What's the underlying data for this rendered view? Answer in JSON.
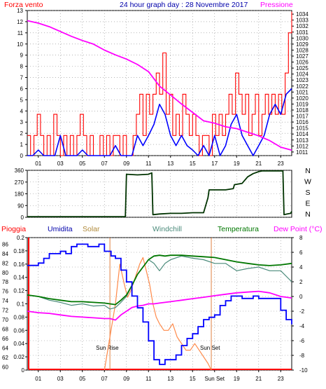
{
  "colors": {
    "red": "#ff0000",
    "dark_red": "#cc0000",
    "blue": "#0000ff",
    "navy": "#0000aa",
    "magenta": "#ff00ff",
    "dark_green": "#003300",
    "green": "#007700",
    "teal": "#4a8a7a",
    "orange": "#ff8a4a",
    "sun_line": "#e08040",
    "grid": "#888888"
  },
  "chart_data": [
    {
      "type": "line",
      "title": "24 hour graph day : 28 Novembre 2017",
      "left_axis_label": "Forza vento",
      "right_axis_label": "Pressione",
      "x_ticks": [
        "01",
        "03",
        "05",
        "07",
        "09",
        "11",
        "13",
        "15",
        "17",
        "19",
        "21",
        "23"
      ],
      "x_range": [
        0,
        24
      ],
      "left_ylim": [
        0,
        13
      ],
      "left_ticks": [
        "0",
        "1",
        "2",
        "3",
        "4",
        "5",
        "6",
        "7",
        "8",
        "9",
        "10",
        "11",
        "12",
        "13"
      ],
      "right_ylim": [
        1010.4,
        1034.6
      ],
      "right_ticks": [
        "1011",
        "1012",
        "1013",
        "1014",
        "1015",
        "1016",
        "1017",
        "1018",
        "1019",
        "1020",
        "1021",
        "1022",
        "1023",
        "1024",
        "1025",
        "1026",
        "1027",
        "1028",
        "1029",
        "1030",
        "1031",
        "1032",
        "1033",
        "1034"
      ],
      "series": [
        {
          "role": "pressure",
          "axis": "right",
          "x": [
            0,
            1,
            2,
            3,
            4,
            5,
            6,
            7,
            8,
            9,
            10,
            11,
            12,
            13,
            14,
            15,
            16,
            17,
            18,
            19,
            20,
            21,
            22,
            23,
            24
          ],
          "y": [
            1032.9,
            1032.5,
            1031.9,
            1031.1,
            1030.3,
            1029.6,
            1029.0,
            1028.0,
            1027.2,
            1026.5,
            1025.6,
            1024.4,
            1022.0,
            1020.5,
            1019.0,
            1017.6,
            1016.2,
            1015.8,
            1015.2,
            1014.9,
            1014.3,
            1013.7,
            1012.9,
            1011.8,
            1011.3
          ]
        },
        {
          "role": "gust",
          "axis": "left",
          "x": [
            0,
            0.3,
            0.6,
            0.9,
            1.2,
            1.5,
            1.8,
            2.1,
            2.4,
            2.7,
            3.0,
            3.3,
            3.6,
            3.9,
            4.2,
            4.5,
            4.8,
            5.1,
            5.4,
            5.7,
            6.0,
            6.3,
            6.6,
            6.9,
            7.2,
            7.5,
            7.8,
            8.1,
            8.4,
            8.7,
            9.0,
            9.3,
            9.6,
            9.9,
            10.2,
            10.5,
            10.8,
            11.1,
            11.4,
            11.7,
            12.0,
            12.3,
            12.6,
            12.9,
            13.2,
            13.5,
            13.8,
            14.1,
            14.4,
            14.7,
            15.0,
            15.3,
            15.6,
            15.9,
            16.2,
            16.5,
            16.8,
            17.1,
            17.4,
            17.7,
            18.0,
            18.3,
            18.6,
            18.9,
            19.2,
            19.5,
            19.8,
            20.1,
            20.4,
            20.7,
            21.0,
            21.3,
            21.6,
            21.9,
            22.2,
            22.5,
            22.8,
            23.1,
            23.4,
            23.7,
            24.0
          ],
          "y": [
            1.8,
            0,
            1.8,
            3.7,
            1.8,
            0,
            1.8,
            0,
            3.7,
            1.8,
            0,
            1.8,
            0,
            1.8,
            0,
            1.8,
            3.7,
            1.8,
            0,
            1.8,
            0,
            0,
            1.8,
            0,
            1.8,
            0,
            1.8,
            1.8,
            0,
            1.8,
            0,
            0,
            1.8,
            3.7,
            5.5,
            1.8,
            5.5,
            3.7,
            5.5,
            7.4,
            5.5,
            9.2,
            3.7,
            5.5,
            1.8,
            3.7,
            1.8,
            5.5,
            3.7,
            1.8,
            3.7,
            1.8,
            0,
            1.8,
            1.8,
            0,
            3.7,
            1.8,
            3.7,
            1.8,
            3.7,
            5.5,
            3.7,
            7.4,
            5.5,
            3.7,
            5.5,
            1.8,
            3.7,
            5.5,
            1.8,
            3.7,
            5.5,
            3.7,
            5.5,
            3.7,
            5.5,
            3.7,
            7.4,
            11.0,
            12.9
          ]
        },
        {
          "role": "wind",
          "axis": "left",
          "x": [
            0,
            0.5,
            1.0,
            1.5,
            2.0,
            2.5,
            3.0,
            3.5,
            4.0,
            4.5,
            5.0,
            5.5,
            6.0,
            6.5,
            7.0,
            7.5,
            8.0,
            8.5,
            9.0,
            9.5,
            10.0,
            10.5,
            11.0,
            11.5,
            12.0,
            12.5,
            13.0,
            13.5,
            14.0,
            14.5,
            15.0,
            15.5,
            16.0,
            16.5,
            17.0,
            17.5,
            18.0,
            18.5,
            19.0,
            19.5,
            20.0,
            20.5,
            21.0,
            21.5,
            22.0,
            22.5,
            23.0,
            23.5,
            24.0
          ],
          "y": [
            0,
            0,
            0.5,
            0,
            0,
            0,
            1.8,
            0,
            0,
            0,
            0.5,
            0,
            0,
            0,
            0,
            0,
            0.9,
            0,
            0,
            0,
            1.8,
            0.9,
            1.8,
            2.8,
            4.6,
            3.7,
            1.8,
            0.9,
            1.8,
            0.9,
            0.5,
            0,
            0.9,
            0,
            1.8,
            0,
            0.9,
            2.8,
            3.7,
            1.8,
            0.9,
            0,
            0.9,
            1.8,
            3.7,
            4.6,
            3.7,
            5.5,
            6.0
          ]
        }
      ]
    },
    {
      "type": "line",
      "role": "direction",
      "y_ticks": [
        "0",
        "90",
        "180",
        "270",
        "360"
      ],
      "ylim": [
        0,
        360
      ],
      "direction_labels": [
        "N",
        "W",
        "S",
        "E",
        "N"
      ],
      "x_range": [
        0,
        24
      ],
      "x": [
        0,
        8.9,
        9.0,
        10.0,
        11.0,
        11.3,
        11.4,
        12.0,
        13.0,
        14.0,
        15.0,
        16.0,
        16.4,
        16.5,
        18.0,
        18.7,
        18.8,
        19.5,
        20.0,
        20.5,
        21.0,
        21.3,
        21.5,
        22.0,
        22.5,
        23.0,
        23.2,
        23.3,
        23.6,
        23.9,
        24.0
      ],
      "y": [
        5,
        5,
        330,
        325,
        330,
        340,
        20,
        25,
        30,
        30,
        35,
        35,
        150,
        210,
        210,
        220,
        250,
        260,
        310,
        335,
        350,
        355,
        355,
        355,
        355,
        355,
        355,
        20,
        25,
        30,
        45
      ]
    },
    {
      "type": "line",
      "labels": {
        "rain": "Pioggia",
        "humidity": "Umidita",
        "solar": "Solar",
        "windchill": "Windchill",
        "temperature": "Temperatura",
        "dewpoint": "Dew Point (°C)"
      },
      "x_ticks": [
        "01",
        "03",
        "05",
        "07",
        "09",
        "11",
        "13",
        "15",
        "Sun Set",
        "19",
        "21",
        "23"
      ],
      "x_range": [
        0,
        24
      ],
      "rain_ticks": [
        "0",
        "0.02",
        "0.04",
        "0.06",
        "0.08",
        "0.1",
        "0.12",
        "0.14",
        "0.16",
        "0.18",
        "0.2"
      ],
      "rain_ylim": [
        0,
        0.2
      ],
      "humidity_ticks": [
        "60",
        "62",
        "64",
        "66",
        "68",
        "70",
        "72",
        "74",
        "76",
        "78",
        "80",
        "82",
        "84",
        "86"
      ],
      "humidity_ylim": [
        59.3,
        87.4
      ],
      "temp_ticks": [
        "-10",
        "-8",
        "-6",
        "-4",
        "-2",
        "0",
        "2",
        "4",
        "6",
        "8"
      ],
      "temp_ylim": [
        -10,
        8
      ],
      "sun_rise": {
        "x": 7.5,
        "label": "Sun Rise"
      },
      "sun_set": {
        "x": 16.7,
        "label": "Sun Set"
      },
      "series": [
        {
          "role": "humidity",
          "axis": "humidity",
          "x": [
            0,
            1,
            1.5,
            2,
            3,
            3.5,
            4,
            4.5,
            5,
            5.5,
            6,
            6.5,
            7,
            7.3,
            7.6,
            8,
            8.5,
            9,
            9.5,
            10,
            10.5,
            11,
            11.5,
            12,
            12.5,
            13,
            13.5,
            14,
            14.5,
            15,
            15.5,
            16,
            16.5,
            17,
            17.5,
            18,
            18.5,
            19,
            19.5,
            20,
            20.5,
            21,
            21.5,
            22,
            22.5,
            23,
            23.5,
            24
          ],
          "y": [
            81.5,
            82.0,
            83.0,
            84.0,
            84.5,
            84.0,
            85.5,
            86.0,
            86.0,
            85.5,
            85.5,
            86.0,
            84.5,
            84.5,
            83.5,
            83.0,
            80.5,
            78.0,
            75.0,
            72.5,
            69.5,
            65.5,
            61.5,
            60.5,
            61.5,
            61.5,
            62.5,
            64.5,
            66.0,
            67.0,
            68.5,
            70.0,
            70.5,
            71.0,
            73.0,
            74.0,
            75.0,
            75.0,
            74.5,
            74.5,
            75.0,
            74.5,
            74.5,
            74.5,
            74.5,
            72.0,
            70.0,
            69.0
          ]
        },
        {
          "role": "solar",
          "axis": "rain",
          "x": [
            7,
            7.6,
            8,
            8.4,
            8.8,
            9.1,
            9.4,
            9.8,
            10.2,
            10.5,
            10.8,
            11.1,
            11.4,
            11.7,
            12,
            12.4,
            12.8,
            13.2,
            13.6,
            14,
            14.4,
            14.8,
            15.2,
            15.6,
            16.0,
            16.4,
            16.7
          ],
          "y": [
            0.0,
            0.06,
            0.1,
            0.16,
            0.13,
            0.11,
            0.12,
            0.14,
            0.16,
            0.17,
            0.15,
            0.13,
            0.1,
            0.08,
            0.07,
            0.06,
            0.06,
            0.07,
            0.05,
            0.04,
            0.03,
            0.03,
            0.04,
            0.03,
            0.02,
            0.01,
            0.0
          ]
        },
        {
          "role": "windchill",
          "axis": "temp",
          "x": [
            0,
            1,
            2,
            3,
            4,
            5,
            6,
            7,
            7.5,
            8,
            8.5,
            9,
            9.5,
            10,
            10.5,
            11,
            11.5,
            12,
            12.5,
            13,
            14,
            15,
            16,
            17,
            18,
            19,
            20,
            21,
            22,
            23,
            24
          ],
          "y": [
            0.2,
            0.0,
            -0.5,
            -0.8,
            -1.2,
            -1.0,
            -1.3,
            -1.2,
            -1.7,
            -1.5,
            -0.8,
            0.0,
            1.5,
            3.0,
            4.0,
            5.0,
            4.5,
            3.5,
            4.5,
            5.0,
            5.5,
            5.2,
            5.0,
            4.5,
            4.5,
            3.5,
            3.8,
            4.0,
            3.5,
            3.5,
            2.0
          ]
        },
        {
          "role": "temperature",
          "axis": "temp",
          "x": [
            0,
            1,
            2,
            3,
            4,
            5,
            6,
            7,
            7.5,
            8,
            8.5,
            9,
            9.5,
            10,
            10.5,
            11,
            11.5,
            12,
            12.5,
            13,
            14,
            15,
            16,
            17,
            18,
            19,
            20,
            21,
            22,
            23,
            24
          ],
          "y": [
            0.2,
            0.0,
            -0.3,
            -0.5,
            -0.7,
            -0.7,
            -0.8,
            -0.9,
            -1.0,
            -1.1,
            -0.5,
            0.2,
            1.5,
            3.0,
            4.0,
            5.0,
            5.5,
            5.6,
            5.5,
            5.6,
            5.6,
            5.5,
            5.4,
            5.3,
            5.0,
            4.7,
            4.5,
            4.3,
            4.2,
            4.3,
            4.5
          ]
        },
        {
          "role": "dewpoint",
          "axis": "temp",
          "x": [
            0,
            1,
            2,
            3,
            4,
            5,
            6,
            7,
            7.5,
            8,
            8.5,
            9,
            9.5,
            10,
            10.5,
            11,
            11.5,
            12,
            12.5,
            13,
            14,
            15,
            16,
            17,
            18,
            19,
            20,
            21,
            22,
            23,
            24
          ],
          "y": [
            -2.0,
            -2.2,
            -2.3,
            -2.5,
            -2.7,
            -2.8,
            -2.9,
            -3.0,
            -3.0,
            -3.2,
            -2.5,
            -2.0,
            -1.5,
            -1.3,
            -1.2,
            -1.0,
            -1.0,
            -0.9,
            -0.8,
            -0.7,
            -0.5,
            -0.3,
            -0.1,
            0.1,
            0.3,
            0.5,
            0.6,
            0.7,
            0.5,
            0.0,
            -0.2
          ]
        }
      ]
    }
  ]
}
